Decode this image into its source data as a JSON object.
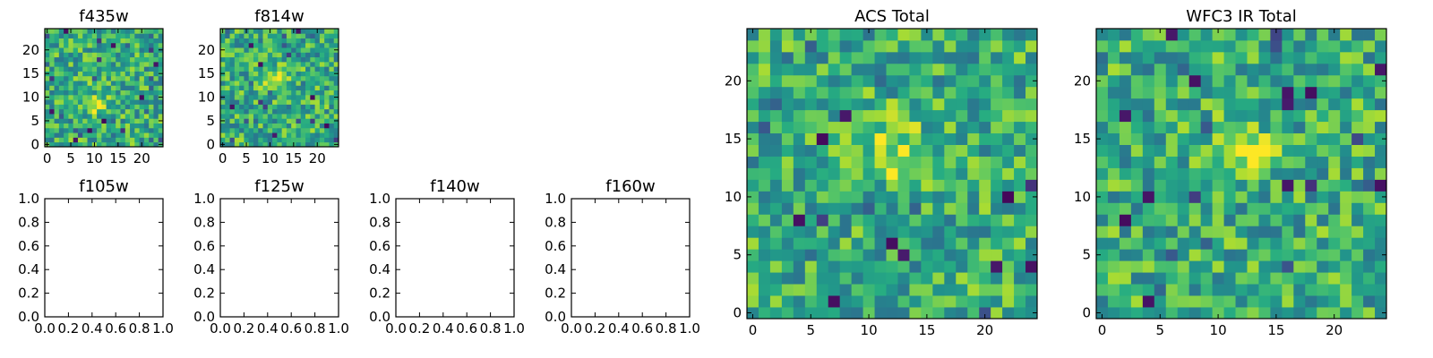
{
  "chart_data": [
    {
      "type": "heatmap",
      "title": "f435w",
      "colormap": "viridis",
      "grid_size": [
        25,
        25
      ],
      "xlim": [
        -0.5,
        24.5
      ],
      "ylim": [
        -0.5,
        24.5
      ],
      "x_ticks": [
        "0",
        "5",
        "10",
        "15",
        "20"
      ],
      "y_ticks": [
        "0",
        "5",
        "10",
        "15",
        "20"
      ],
      "value_range": [
        0,
        1
      ],
      "bright_center": [
        10,
        9
      ],
      "dark_pixels": [
        [
          12,
          5
        ],
        [
          6,
          1
        ],
        [
          1,
          7
        ],
        [
          20,
          10
        ],
        [
          14,
          21
        ],
        [
          4,
          24
        ],
        [
          23,
          17
        ],
        [
          9,
          3
        ]
      ],
      "seed": 435
    },
    {
      "type": "heatmap",
      "title": "f814w",
      "colormap": "viridis",
      "grid_size": [
        25,
        25
      ],
      "xlim": [
        -0.5,
        24.5
      ],
      "ylim": [
        -0.5,
        24.5
      ],
      "x_ticks": [
        "0",
        "5",
        "10",
        "15",
        "20"
      ],
      "y_ticks": [
        "0",
        "5",
        "10",
        "15",
        "20"
      ],
      "value_range": [
        0,
        1
      ],
      "bright_center": [
        11,
        14
      ],
      "dark_pixels": [
        [
          11,
          2
        ],
        [
          6,
          21
        ],
        [
          19,
          10
        ],
        [
          2,
          8
        ],
        [
          16,
          24
        ],
        [
          22,
          4
        ],
        [
          8,
          17
        ]
      ],
      "seed": 814
    },
    {
      "type": "heatmap",
      "title": "f105w",
      "empty": true,
      "xlim": [
        0,
        1
      ],
      "ylim": [
        0,
        1
      ],
      "x_ticks": [
        "0.0",
        "0.2",
        "0.4",
        "0.6",
        "0.8",
        "1.0"
      ],
      "y_ticks": [
        "0.0",
        "0.2",
        "0.4",
        "0.6",
        "0.8",
        "1.0"
      ]
    },
    {
      "type": "heatmap",
      "title": "f125w",
      "empty": true,
      "xlim": [
        0,
        1
      ],
      "ylim": [
        0,
        1
      ],
      "x_ticks": [
        "0.0",
        "0.2",
        "0.4",
        "0.6",
        "0.8",
        "1.0"
      ],
      "y_ticks": [
        "0.0",
        "0.2",
        "0.4",
        "0.6",
        "0.8",
        "1.0"
      ]
    },
    {
      "type": "heatmap",
      "title": "f140w",
      "empty": true,
      "xlim": [
        0,
        1
      ],
      "ylim": [
        0,
        1
      ],
      "x_ticks": [
        "0.0",
        "0.2",
        "0.4",
        "0.6",
        "0.8",
        "1.0"
      ],
      "y_ticks": [
        "0.0",
        "0.2",
        "0.4",
        "0.6",
        "0.8",
        "1.0"
      ]
    },
    {
      "type": "heatmap",
      "title": "f160w",
      "empty": true,
      "xlim": [
        0,
        1
      ],
      "ylim": [
        0,
        1
      ],
      "x_ticks": [
        "0.0",
        "0.2",
        "0.4",
        "0.6",
        "0.8",
        "1.0"
      ],
      "y_ticks": [
        "0.0",
        "0.2",
        "0.4",
        "0.6",
        "0.8",
        "1.0"
      ]
    },
    {
      "type": "heatmap",
      "title": "ACS Total",
      "colormap": "viridis",
      "grid_size": [
        25,
        25
      ],
      "xlim": [
        -0.5,
        24.5
      ],
      "ylim": [
        -0.5,
        24.5
      ],
      "x_ticks": [
        "0",
        "5",
        "10",
        "15",
        "20"
      ],
      "y_ticks": [
        "0",
        "5",
        "10",
        "15",
        "20"
      ],
      "value_range": [
        0,
        1
      ],
      "bright_center": [
        12,
        14
      ],
      "dark_pixels": [
        [
          8,
          17
        ],
        [
          6,
          15
        ],
        [
          4,
          8
        ],
        [
          12,
          6
        ],
        [
          13,
          5
        ],
        [
          7,
          1
        ],
        [
          24,
          4
        ],
        [
          21,
          4
        ],
        [
          22,
          10
        ]
      ],
      "seed": 101
    },
    {
      "type": "heatmap",
      "title": "WFC3 IR Total",
      "colormap": "viridis",
      "grid_size": [
        25,
        25
      ],
      "xlim": [
        -0.5,
        24.5
      ],
      "ylim": [
        -0.5,
        24.5
      ],
      "x_ticks": [
        "0",
        "5",
        "10",
        "15",
        "20"
      ],
      "y_ticks": [
        "0",
        "5",
        "10",
        "15",
        "20"
      ],
      "value_range": [
        0,
        1
      ],
      "bright_center": [
        12,
        14
      ],
      "dark_pixels": [
        [
          24,
          21
        ],
        [
          8,
          20
        ],
        [
          16,
          19
        ],
        [
          18,
          19
        ],
        [
          2,
          17
        ],
        [
          16,
          18
        ],
        [
          4,
          10
        ],
        [
          2,
          8
        ],
        [
          4,
          1
        ],
        [
          24,
          11
        ],
        [
          16,
          11
        ],
        [
          6,
          24
        ]
      ],
      "seed": 202
    }
  ]
}
